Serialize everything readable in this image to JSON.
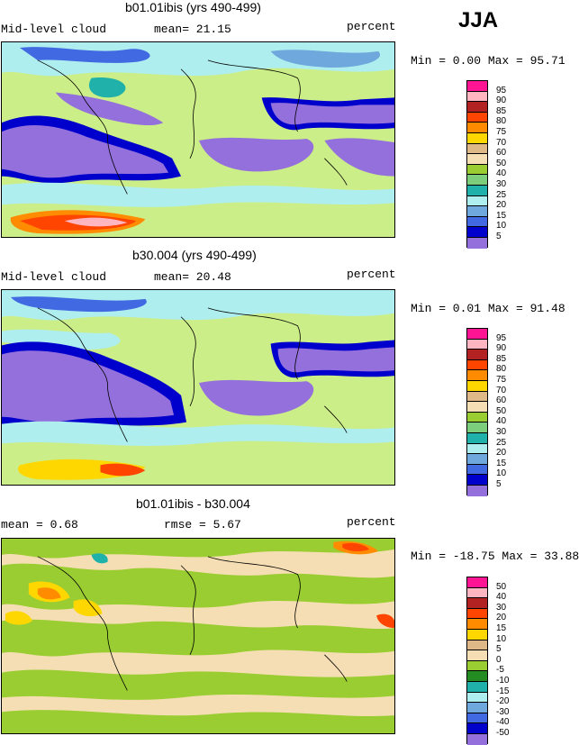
{
  "season": "JJA",
  "panels": [
    {
      "title": "b01.01ibis (yrs 490-499)",
      "left_label": "Mid-level cloud",
      "center_label": "mean=  21.15",
      "right_label": "percent",
      "minmax": "Min =   0.00 Max =  95.71",
      "colorbar": {
        "labels": [
          "95",
          "90",
          "85",
          "80",
          "75",
          "70",
          "60",
          "50",
          "40",
          "30",
          "25",
          "20",
          "15",
          "10",
          "5"
        ],
        "colors": [
          "#ff1493",
          "#ffb6c1",
          "#b22222",
          "#ff4500",
          "#ff8c00",
          "#ffd700",
          "#deb887",
          "#f5deb3",
          "#9acd32",
          "#7ccd7c",
          "#20b2aa",
          "#afeeee",
          "#6fa8dc",
          "#4169e1",
          "#0000cd",
          "#9370db"
        ]
      }
    },
    {
      "title": "b30.004 (yrs 490-499)",
      "left_label": "Mid-level cloud",
      "center_label": "mean=  20.48",
      "right_label": "percent",
      "minmax": "Min =   0.01 Max =  91.48",
      "colorbar": {
        "labels": [
          "95",
          "90",
          "85",
          "80",
          "75",
          "70",
          "60",
          "50",
          "40",
          "30",
          "25",
          "20",
          "15",
          "10",
          "5"
        ],
        "colors": [
          "#ff1493",
          "#ffb6c1",
          "#b22222",
          "#ff4500",
          "#ff8c00",
          "#ffd700",
          "#deb887",
          "#f5deb3",
          "#9acd32",
          "#7ccd7c",
          "#20b2aa",
          "#afeeee",
          "#6fa8dc",
          "#4169e1",
          "#0000cd",
          "#9370db"
        ]
      }
    },
    {
      "title": "b01.01ibis - b30.004",
      "left_label": "mean =   0.68",
      "center_label": "rmse =   5.67",
      "right_label": "percent",
      "minmax": "Min = -18.75 Max =  33.88",
      "colorbar": {
        "labels": [
          "50",
          "40",
          "30",
          "20",
          "15",
          "10",
          "5",
          "0",
          "-5",
          "-10",
          "-15",
          "-20",
          "-30",
          "-40",
          "-50"
        ],
        "colors": [
          "#ff1493",
          "#ffb6c1",
          "#b22222",
          "#ff4500",
          "#ff8c00",
          "#ffd700",
          "#deb887",
          "#f5deb3",
          "#9acd32",
          "#228b22",
          "#20b2aa",
          "#afeeee",
          "#6fa8dc",
          "#4169e1",
          "#0000cd",
          "#9370db"
        ]
      }
    }
  ],
  "colors": {
    "ocean_low": "#9370db",
    "mid_green": "#9acd32",
    "light_green": "#ccee88",
    "cyan": "#afeeee",
    "teal": "#20b2aa",
    "blue": "#4169e1",
    "dark_blue": "#0000cd",
    "tan": "#f5deb3",
    "wheat": "#deb887",
    "yellow": "#ffd700",
    "orange": "#ff8c00",
    "red": "#ff4500",
    "pink": "#ffb6c1"
  }
}
